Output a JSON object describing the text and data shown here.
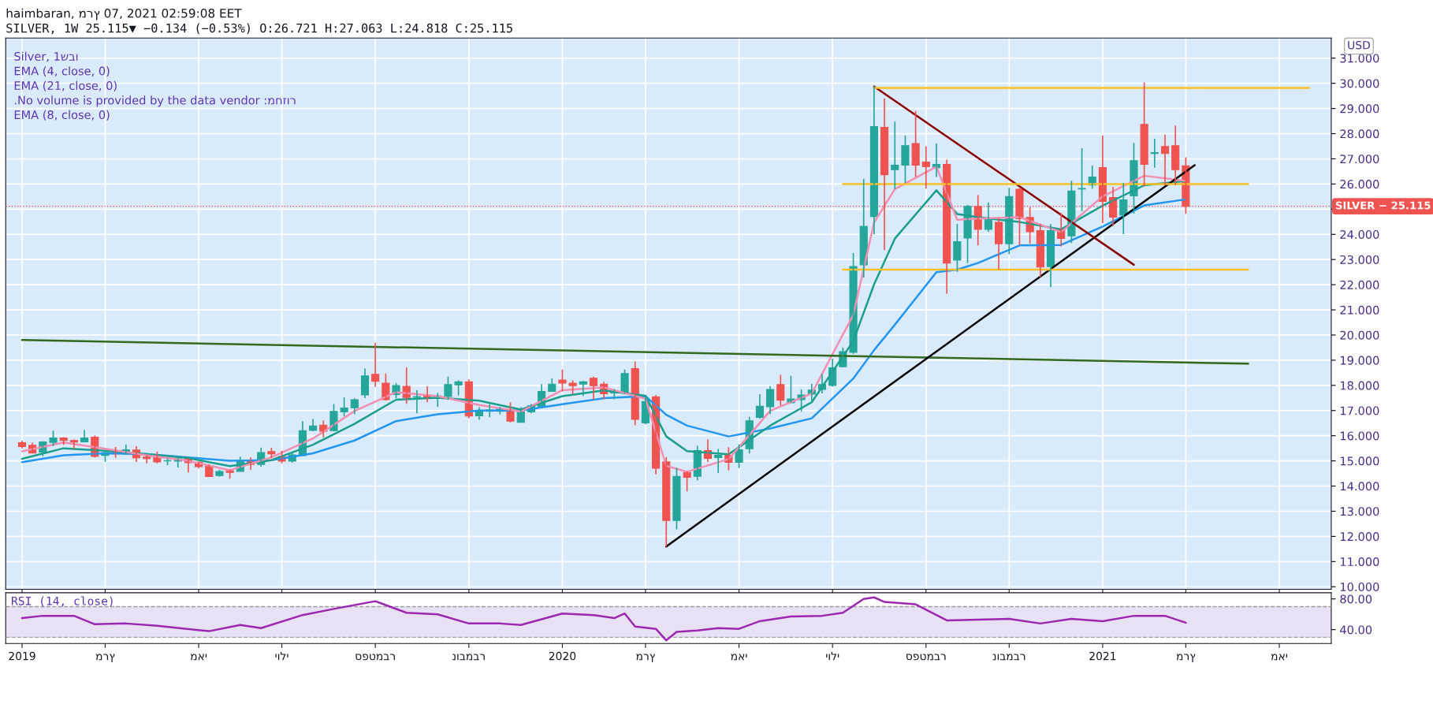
{
  "chart_data": [
    {
      "type": "candlestick",
      "title": "haimbaran, מרץ 07, 2021 02:59:08 EET",
      "subtitle": "SILVER, 1W 25.115▼ −0.134 (−0.53%) O:26.721 H:27.063 L:24.818 C:25.115",
      "ylabel": "USD",
      "annotations": [
        "Silver, 1שבו",
        "EMA (4, close, 0)",
        "EMA (21, close, 0)",
        ".No volume is provided by the data vendor :מחזור",
        "EMA (8, close, 0)"
      ],
      "x": [
        "2019-01-07",
        "2019-01-14",
        "2019-01-21",
        "2019-01-28",
        "2019-02-04",
        "2019-02-11",
        "2019-02-18",
        "2019-02-25",
        "2019-03-04",
        "2019-03-11",
        "2019-03-18",
        "2019-03-25",
        "2019-04-01",
        "2019-04-08",
        "2019-04-15",
        "2019-04-22",
        "2019-04-29",
        "2019-05-06",
        "2019-05-13",
        "2019-05-20",
        "2019-05-27",
        "2019-06-03",
        "2019-06-10",
        "2019-06-17",
        "2019-06-24",
        "2019-07-01",
        "2019-07-08",
        "2019-07-15",
        "2019-07-22",
        "2019-07-29",
        "2019-08-05",
        "2019-08-12",
        "2019-08-19",
        "2019-08-26",
        "2019-09-02",
        "2019-09-09",
        "2019-09-16",
        "2019-09-23",
        "2019-09-30",
        "2019-10-07",
        "2019-10-14",
        "2019-10-21",
        "2019-10-28",
        "2019-11-04",
        "2019-11-11",
        "2019-11-18",
        "2019-11-25",
        "2019-12-02",
        "2019-12-09",
        "2019-12-16",
        "2019-12-23",
        "2019-12-30",
        "2020-01-06",
        "2020-01-13",
        "2020-01-20",
        "2020-01-27",
        "2020-02-03",
        "2020-02-10",
        "2020-02-17",
        "2020-02-24",
        "2020-03-02",
        "2020-03-09",
        "2020-03-16",
        "2020-03-23",
        "2020-03-30",
        "2020-04-06",
        "2020-04-13",
        "2020-04-20",
        "2020-04-27",
        "2020-05-04",
        "2020-05-11",
        "2020-05-18",
        "2020-05-25",
        "2020-06-01",
        "2020-06-08",
        "2020-06-15",
        "2020-06-22",
        "2020-06-29",
        "2020-07-06",
        "2020-07-13",
        "2020-07-20",
        "2020-07-27",
        "2020-08-03",
        "2020-08-10",
        "2020-08-17",
        "2020-08-24",
        "2020-08-31",
        "2020-09-07",
        "2020-09-14",
        "2020-09-21",
        "2020-09-28",
        "2020-10-05",
        "2020-10-12",
        "2020-10-19",
        "2020-10-26",
        "2020-11-02",
        "2020-11-09",
        "2020-11-16",
        "2020-11-23",
        "2020-11-30",
        "2020-12-07",
        "2020-12-14",
        "2020-12-21",
        "2020-12-28",
        "2021-01-04",
        "2021-01-11",
        "2021-01-18",
        "2021-01-25",
        "2021-02-01",
        "2021-02-08",
        "2021-02-15",
        "2021-02-22",
        "2021-03-01"
      ],
      "ohlc": [
        [
          15.72,
          15.8,
          15.5,
          15.57
        ],
        [
          15.62,
          15.72,
          15.3,
          15.31
        ],
        [
          15.34,
          15.78,
          15.18,
          15.75
        ],
        [
          15.73,
          16.2,
          15.59,
          15.91
        ],
        [
          15.91,
          15.94,
          15.64,
          15.81
        ],
        [
          15.81,
          15.85,
          15.47,
          15.75
        ],
        [
          15.76,
          16.23,
          15.73,
          15.91
        ],
        [
          15.94,
          16.01,
          15.14,
          15.18
        ],
        [
          15.22,
          15.38,
          14.96,
          15.33
        ],
        [
          15.34,
          15.55,
          15.12,
          15.28
        ],
        [
          15.28,
          15.65,
          15.25,
          15.44
        ],
        [
          15.43,
          15.58,
          14.96,
          15.12
        ],
        [
          15.15,
          15.22,
          14.9,
          15.09
        ],
        [
          15.14,
          15.37,
          14.9,
          14.96
        ],
        [
          15.0,
          15.1,
          14.83,
          15.01
        ],
        [
          14.99,
          15.1,
          14.74,
          15.08
        ],
        [
          15.08,
          15.1,
          14.54,
          14.93
        ],
        [
          14.95,
          14.97,
          14.7,
          14.77
        ],
        [
          14.79,
          14.86,
          14.38,
          14.38
        ],
        [
          14.42,
          14.65,
          14.38,
          14.58
        ],
        [
          14.61,
          14.67,
          14.29,
          14.54
        ],
        [
          14.58,
          15.17,
          14.58,
          15.01
        ],
        [
          14.98,
          15.14,
          14.64,
          14.86
        ],
        [
          14.86,
          15.53,
          14.77,
          15.33
        ],
        [
          15.37,
          15.53,
          15.11,
          15.28
        ],
        [
          15.17,
          15.4,
          14.9,
          14.99
        ],
        [
          14.99,
          15.33,
          14.93,
          15.24
        ],
        [
          15.21,
          16.58,
          15.21,
          16.2
        ],
        [
          16.21,
          16.66,
          16.18,
          16.39
        ],
        [
          16.42,
          16.61,
          15.93,
          16.18
        ],
        [
          16.2,
          17.26,
          16.18,
          16.97
        ],
        [
          16.95,
          17.52,
          16.77,
          17.1
        ],
        [
          17.11,
          17.49,
          16.85,
          17.43
        ],
        [
          17.62,
          18.67,
          17.49,
          18.38
        ],
        [
          18.44,
          19.69,
          17.94,
          18.16
        ],
        [
          18.09,
          18.47,
          17.4,
          17.43
        ],
        [
          17.64,
          18.09,
          17.49,
          17.99
        ],
        [
          17.96,
          18.71,
          17.27,
          17.52
        ],
        [
          17.53,
          17.81,
          16.89,
          17.55
        ],
        [
          17.58,
          17.96,
          17.33,
          17.52
        ],
        [
          17.56,
          17.7,
          17.14,
          17.58
        ],
        [
          17.56,
          18.35,
          17.43,
          18.03
        ],
        [
          18.02,
          18.2,
          17.6,
          18.14
        ],
        [
          18.14,
          18.24,
          16.69,
          16.78
        ],
        [
          16.79,
          17.13,
          16.63,
          16.97
        ],
        [
          16.97,
          17.26,
          16.73,
          17.02
        ],
        [
          16.97,
          17.13,
          16.84,
          17.06
        ],
        [
          17.0,
          17.32,
          16.53,
          16.58
        ],
        [
          16.53,
          17.13,
          16.53,
          16.95
        ],
        [
          16.95,
          17.26,
          16.89,
          17.19
        ],
        [
          17.17,
          18.05,
          17.17,
          17.76
        ],
        [
          17.76,
          18.28,
          17.76,
          18.05
        ],
        [
          18.21,
          18.63,
          17.76,
          18.09
        ],
        [
          18.09,
          18.2,
          17.66,
          17.99
        ],
        [
          18.05,
          18.17,
          17.58,
          18.14
        ],
        [
          18.28,
          18.35,
          17.43,
          17.99
        ],
        [
          18.05,
          18.14,
          17.45,
          17.67
        ],
        [
          17.7,
          17.85,
          17.45,
          17.76
        ],
        [
          17.7,
          18.63,
          17.67,
          18.47
        ],
        [
          18.67,
          18.95,
          16.41,
          16.65
        ],
        [
          16.51,
          17.57,
          16.45,
          17.36
        ],
        [
          17.55,
          17.61,
          14.46,
          14.71
        ],
        [
          14.96,
          15.15,
          11.6,
          12.63
        ],
        [
          12.63,
          14.73,
          12.28,
          14.38
        ],
        [
          14.54,
          14.58,
          13.79,
          14.35
        ],
        [
          14.39,
          15.6,
          14.23,
          15.41
        ],
        [
          15.41,
          15.86,
          14.96,
          15.1
        ],
        [
          15.13,
          15.47,
          14.52,
          15.22
        ],
        [
          15.22,
          15.54,
          14.62,
          14.94
        ],
        [
          14.94,
          15.66,
          14.71,
          15.44
        ],
        [
          15.48,
          16.75,
          15.29,
          16.59
        ],
        [
          16.73,
          17.65,
          16.67,
          17.17
        ],
        [
          17.15,
          17.97,
          16.86,
          17.84
        ],
        [
          18.03,
          18.42,
          17.2,
          17.41
        ],
        [
          17.31,
          18.38,
          17.31,
          17.46
        ],
        [
          17.43,
          17.84,
          16.95,
          17.62
        ],
        [
          17.65,
          18.06,
          17.36,
          17.81
        ],
        [
          17.84,
          18.45,
          17.68,
          18.03
        ],
        [
          18.0,
          19.06,
          17.95,
          18.7
        ],
        [
          18.74,
          19.5,
          18.74,
          19.34
        ],
        [
          19.31,
          23.26,
          19.25,
          22.72
        ],
        [
          22.79,
          26.2,
          22.28,
          24.32
        ],
        [
          24.71,
          29.87,
          24.01,
          28.28
        ],
        [
          28.25,
          29.4,
          23.37,
          26.37
        ],
        [
          26.57,
          28.48,
          25.8,
          26.75
        ],
        [
          26.75,
          27.93,
          26.04,
          27.52
        ],
        [
          27.61,
          28.9,
          26.28,
          26.75
        ],
        [
          26.87,
          27.49,
          25.82,
          26.69
        ],
        [
          26.65,
          27.61,
          26.28,
          26.78
        ],
        [
          26.78,
          26.97,
          21.64,
          22.86
        ],
        [
          22.98,
          24.41,
          22.51,
          23.71
        ],
        [
          23.85,
          25.17,
          22.86,
          25.11
        ],
        [
          25.11,
          25.56,
          23.56,
          24.2
        ],
        [
          24.2,
          25.27,
          24.1,
          24.58
        ],
        [
          24.48,
          24.64,
          22.61,
          23.63
        ],
        [
          23.63,
          25.85,
          23.21,
          25.5
        ],
        [
          25.79,
          25.85,
          23.56,
          24.62
        ],
        [
          24.67,
          25.08,
          23.63,
          24.1
        ],
        [
          24.15,
          24.41,
          22.31,
          22.7
        ],
        [
          22.72,
          24.41,
          21.9,
          24.15
        ],
        [
          24.18,
          24.86,
          23.52,
          23.84
        ],
        [
          23.94,
          26.13,
          23.65,
          25.72
        ],
        [
          25.8,
          27.42,
          24.92,
          25.82
        ],
        [
          25.96,
          26.73,
          25.82,
          26.28
        ],
        [
          26.65,
          27.93,
          24.45,
          25.31
        ],
        [
          25.46,
          25.88,
          24.33,
          24.68
        ],
        [
          24.77,
          26.04,
          24.01,
          25.37
        ],
        [
          25.53,
          27.63,
          24.82,
          26.93
        ],
        [
          28.37,
          30.04,
          25.9,
          26.78
        ],
        [
          27.21,
          27.8,
          26.65,
          27.25
        ],
        [
          27.49,
          27.96,
          25.96,
          27.21
        ],
        [
          27.52,
          28.32,
          25.96,
          26.57
        ],
        [
          26.721,
          27.063,
          24.818,
          25.115
        ]
      ],
      "colors": [
        "#ef5350",
        "#ef5350",
        "#26a69a",
        "#26a69a",
        "#ef5350",
        "#ef5350",
        "#26a69a",
        "#ef5350",
        "#26a69a",
        "#ef5350",
        "#26a69a",
        "#ef5350",
        "#ef5350",
        "#ef5350",
        "#26a69a",
        "#26a69a",
        "#ef5350",
        "#ef5350",
        "#ef5350",
        "#26a69a",
        "#ef5350",
        "#26a69a",
        "#ef5350",
        "#26a69a",
        "#ef5350",
        "#ef5350",
        "#26a69a",
        "#26a69a",
        "#26a69a",
        "#ef5350",
        "#26a69a",
        "#26a69a",
        "#26a69a",
        "#26a69a",
        "#ef5350",
        "#ef5350",
        "#26a69a",
        "#ef5350",
        "#26a69a",
        "#ef5350",
        "#26a69a",
        "#26a69a",
        "#26a69a",
        "#ef5350",
        "#26a69a",
        "#26a69a",
        "#26a69a",
        "#ef5350",
        "#26a69a",
        "#26a69a",
        "#26a69a",
        "#26a69a",
        "#ef5350",
        "#ef5350",
        "#26a69a",
        "#ef5350",
        "#ef5350",
        "#26a69a",
        "#26a69a",
        "#ef5350",
        "#26a69a",
        "#ef5350",
        "#ef5350",
        "#26a69a",
        "#ef5350",
        "#26a69a",
        "#ef5350",
        "#26a69a",
        "#ef5350",
        "#26a69a",
        "#26a69a",
        "#26a69a",
        "#26a69a",
        "#ef5350",
        "#26a69a",
        "#26a69a",
        "#26a69a",
        "#26a69a",
        "#26a69a",
        "#26a69a",
        "#26a69a",
        "#26a69a",
        "#26a69a",
        "#ef5350",
        "#26a69a",
        "#26a69a",
        "#ef5350",
        "#ef5350",
        "#26a69a",
        "#ef5350",
        "#26a69a",
        "#26a69a",
        "#ef5350",
        "#26a69a",
        "#ef5350",
        "#26a69a",
        "#ef5350",
        "#ef5350",
        "#ef5350",
        "#26a69a",
        "#ef5350",
        "#26a69a",
        "#26a69a",
        "#26a69a",
        "#ef5350",
        "#ef5350",
        "#26a69a",
        "#26a69a",
        "#ef5350",
        "#26a69a",
        "#ef5350",
        "#ef5350",
        "#ef5350"
      ],
      "series": [
        {
          "type": "line",
          "color": "#2196f3",
          "x": [
            "2019-01-07",
            "2019-02-04",
            "2019-03-04",
            "2019-04-01",
            "2019-04-29",
            "2019-05-27",
            "2019-06-24",
            "2019-07-22",
            "2019-08-19",
            "2019-09-16",
            "2019-10-14",
            "2019-11-11",
            "2019-12-09",
            "2020-01-06",
            "2020-02-03",
            "2020-03-02",
            "2020-03-16",
            "2020-03-30",
            "2020-04-27",
            "2020-05-25",
            "2020-06-22",
            "2020-07-20",
            "2020-08-03",
            "2020-08-17",
            "2020-09-14",
            "2020-09-28",
            "2020-10-12",
            "2020-11-09",
            "2020-12-07",
            "2021-01-04",
            "2021-02-01",
            "2021-03-01"
          ],
          "values": [
            14.95,
            15.22,
            15.3,
            15.27,
            15.14,
            15.0,
            15.03,
            15.3,
            15.81,
            16.58,
            16.85,
            17.0,
            17.0,
            17.25,
            17.49,
            17.57,
            16.83,
            16.4,
            15.97,
            16.29,
            16.69,
            18.27,
            19.4,
            20.41,
            22.5,
            22.6,
            22.86,
            23.56,
            23.58,
            24.31,
            25.15,
            25.39
          ]
        },
        {
          "type": "line",
          "color": "#1b9e8c",
          "x": [
            "2019-01-07",
            "2019-02-04",
            "2019-03-04",
            "2019-04-01",
            "2019-04-29",
            "2019-05-27",
            "2019-06-24",
            "2019-07-22",
            "2019-08-19",
            "2019-09-16",
            "2019-10-14",
            "2019-11-11",
            "2019-12-09",
            "2020-01-06",
            "2020-02-03",
            "2020-03-02",
            "2020-03-16",
            "2020-03-30",
            "2020-04-27",
            "2020-05-25",
            "2020-06-22",
            "2020-07-20",
            "2020-08-03",
            "2020-08-17",
            "2020-09-14",
            "2020-09-28",
            "2020-10-12",
            "2020-11-09",
            "2020-12-07",
            "2021-01-04",
            "2021-02-01",
            "2021-03-01"
          ],
          "values": [
            15.08,
            15.5,
            15.4,
            15.27,
            15.11,
            14.79,
            15.03,
            15.64,
            16.47,
            17.43,
            17.51,
            17.39,
            17.04,
            17.57,
            17.8,
            17.59,
            15.97,
            15.39,
            15.26,
            16.4,
            17.33,
            19.76,
            22.01,
            23.83,
            25.75,
            24.81,
            24.68,
            24.49,
            24.2,
            25.14,
            25.95,
            26.12
          ]
        },
        {
          "type": "line",
          "color": "#f48fb1",
          "x": [
            "2019-01-07",
            "2019-02-04",
            "2019-03-04",
            "2019-04-01",
            "2019-04-29",
            "2019-05-27",
            "2019-06-24",
            "2019-07-22",
            "2019-08-19",
            "2019-09-16",
            "2019-10-14",
            "2019-11-11",
            "2019-12-09",
            "2020-01-06",
            "2020-02-03",
            "2020-03-02",
            "2020-03-16",
            "2020-03-30",
            "2020-04-27",
            "2020-05-25",
            "2020-06-22",
            "2020-07-20",
            "2020-08-03",
            "2020-08-17",
            "2020-09-14",
            "2020-09-28",
            "2020-10-12",
            "2020-11-09",
            "2020-12-07",
            "2021-01-04",
            "2021-02-01",
            "2021-03-01"
          ],
          "values": [
            15.38,
            15.73,
            15.48,
            15.22,
            15.0,
            14.63,
            15.14,
            15.89,
            16.98,
            17.73,
            17.57,
            17.22,
            16.96,
            17.81,
            17.92,
            17.47,
            14.8,
            14.57,
            15.07,
            16.99,
            17.68,
            20.8,
            24.47,
            25.8,
            26.69,
            24.58,
            24.63,
            24.68,
            24.09,
            25.51,
            26.33,
            26.12
          ]
        },
        {
          "type": "line",
          "color": "#33691e",
          "x": [
            "2019-01-07",
            "2021-04-12"
          ],
          "values": [
            19.8,
            18.86
          ]
        },
        {
          "type": "line",
          "color": "#000000",
          "x": [
            "2020-03-16",
            "2021-03-07"
          ],
          "values": [
            11.6,
            26.75
          ]
        },
        {
          "type": "line",
          "color": "#8b0000",
          "x": [
            "2020-08-03",
            "2021-01-25"
          ],
          "values": [
            29.87,
            22.79
          ]
        },
        {
          "type": "line",
          "color": "#f9c02a",
          "x": [
            "2020-08-03",
            "2021-05-23"
          ],
          "values": [
            29.82,
            29.82
          ]
        },
        {
          "type": "line",
          "color": "#f9c02a",
          "x": [
            "2020-07-13",
            "2021-04-12"
          ],
          "values": [
            26.0,
            26.0
          ]
        },
        {
          "type": "line",
          "color": "#f9c02a",
          "x": [
            "2020-07-13",
            "2021-04-12"
          ],
          "values": [
            22.6,
            22.6
          ]
        }
      ],
      "ref_lines": [
        {
          "axis": "y",
          "value": 25.115,
          "label": "SILVER − 25.115",
          "color": "#ef5350",
          "line_style": "dotted"
        }
      ],
      "xlim": [
        "2018-12-27",
        "2021-06-07"
      ],
      "xticks": [
        {
          "value": "2019-01-07",
          "label": null
        },
        {
          "value": "2019-03-04",
          "label": null
        },
        {
          "value": "2019-05-06",
          "label": null
        },
        {
          "value": "2019-07-01",
          "label": null
        },
        {
          "value": "2019-09-02",
          "label": null
        },
        {
          "value": "2019-11-04",
          "label": null
        },
        {
          "value": "2020-01-06",
          "label": null
        },
        {
          "value": "2020-03-02",
          "label": null
        },
        {
          "value": "2020-05-04",
          "label": null
        },
        {
          "value": "2020-07-06",
          "label": null
        },
        {
          "value": "2020-09-07",
          "label": null
        },
        {
          "value": "2020-11-02",
          "label": null
        },
        {
          "value": "2021-01-04",
          "label": null
        },
        {
          "value": "2021-03-01",
          "label": null
        },
        {
          "value": "2021-05-03",
          "label": null
        }
      ],
      "ylim": [
        9.9,
        31.8
      ],
      "yticks": [
        {
          "value": 10,
          "label": "10.000"
        },
        {
          "value": 11,
          "label": "11.000"
        },
        {
          "value": 12,
          "label": "12.000"
        },
        {
          "value": 13,
          "label": "13.000"
        },
        {
          "value": 14,
          "label": "14.000"
        },
        {
          "value": 15,
          "label": "15.000"
        },
        {
          "value": 16,
          "label": "16.000"
        },
        {
          "value": 17,
          "label": "17.000"
        },
        {
          "value": 18,
          "label": "18.000"
        },
        {
          "value": 19,
          "label": "19.000"
        },
        {
          "value": 20,
          "label": "20.000"
        },
        {
          "value": 21,
          "label": "21.000"
        },
        {
          "value": 22,
          "label": "22.000"
        },
        {
          "value": 23,
          "label": "23.000"
        },
        {
          "value": 24,
          "label": "24.000"
        },
        {
          "value": 25,
          "label": null
        },
        {
          "value": 26,
          "label": "26.000"
        },
        {
          "value": 27,
          "label": "27.000"
        },
        {
          "value": 28,
          "label": "28.000"
        },
        {
          "value": 29,
          "label": "29.000"
        },
        {
          "value": 30,
          "label": "30.000"
        },
        {
          "value": 31,
          "label": "31.000"
        }
      ],
      "grid": true,
      "tick_labels": "y"
    },
    {
      "type": "line",
      "title": "RSI (14, close)",
      "series": [
        {
          "color": "#9c27b0",
          "x": [
            "2019-01-07",
            "2019-01-21",
            "2019-02-11",
            "2019-02-25",
            "2019-03-18",
            "2019-04-08",
            "2019-05-13",
            "2019-06-03",
            "2019-06-17",
            "2019-07-15",
            "2019-08-05",
            "2019-09-02",
            "2019-09-09",
            "2019-09-23",
            "2019-10-14",
            "2019-11-04",
            "2019-11-25",
            "2019-12-09",
            "2020-01-06",
            "2020-01-27",
            "2020-02-10",
            "2020-02-17",
            "2020-02-24",
            "2020-03-09",
            "2020-03-16",
            "2020-03-23",
            "2020-04-06",
            "2020-04-20",
            "2020-05-04",
            "2020-05-18",
            "2020-06-08",
            "2020-06-29",
            "2020-07-13",
            "2020-07-27",
            "2020-08-03",
            "2020-08-10",
            "2020-08-31",
            "2020-09-21",
            "2020-10-12",
            "2020-11-02",
            "2020-11-23",
            "2020-12-14",
            "2021-01-04",
            "2021-01-25",
            "2021-02-15",
            "2021-03-01"
          ],
          "values": [
            55,
            58,
            58,
            47,
            48,
            45,
            38,
            46,
            42,
            59,
            67,
            77,
            72,
            62,
            60,
            48,
            48,
            46,
            61,
            59,
            55,
            61,
            44,
            41,
            26,
            37,
            39,
            42,
            41,
            51,
            57,
            58,
            62,
            80,
            82,
            76,
            73,
            52,
            53,
            54,
            48,
            54,
            51,
            58,
            58,
            49
          ]
        }
      ],
      "ref_lines": [
        {
          "axis": "y",
          "value": 70,
          "color": "#9e9e9e",
          "line_style": "dashed"
        },
        {
          "axis": "y",
          "value": 30,
          "color": "#9e9e9e",
          "line_style": "dashed"
        }
      ],
      "bands": [
        {
          "axis": "y",
          "from": 30,
          "to": 70,
          "color": "#7e57c2"
        }
      ],
      "xlim": [
        "2018-12-27",
        "2021-06-07"
      ],
      "xticks": [
        {
          "value": "2019-01-07",
          "label": "2019"
        },
        {
          "value": "2019-03-04",
          "label": "מרץ"
        },
        {
          "value": "2019-05-06",
          "label": "מאי"
        },
        {
          "value": "2019-07-01",
          "label": "יולי"
        },
        {
          "value": "2019-09-02",
          "label": "ספטמבר"
        },
        {
          "value": "2019-11-04",
          "label": "נובמבר"
        },
        {
          "value": "2020-01-06",
          "label": "2020"
        },
        {
          "value": "2020-03-02",
          "label": "מרץ"
        },
        {
          "value": "2020-05-04",
          "label": "מאי"
        },
        {
          "value": "2020-07-06",
          "label": "יולי"
        },
        {
          "value": "2020-09-07",
          "label": "ספטמבר"
        },
        {
          "value": "2020-11-02",
          "label": "נובמבר"
        },
        {
          "value": "2021-01-04",
          "label": "2021"
        },
        {
          "value": "2021-03-01",
          "label": "מרץ"
        },
        {
          "value": "2021-05-03",
          "label": "מאי"
        }
      ],
      "ylim": [
        22,
        88
      ],
      "yticks": [
        {
          "value": 80,
          "label": "80.00"
        },
        {
          "value": 40,
          "label": "40.00"
        }
      ],
      "grid": true
    }
  ]
}
